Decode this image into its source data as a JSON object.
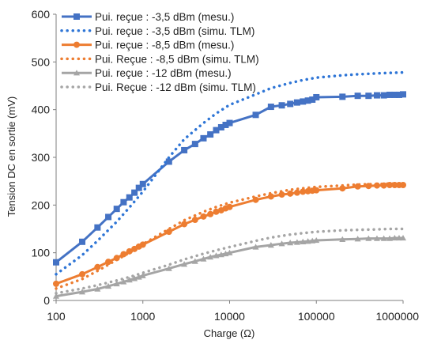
{
  "chart_data": {
    "type": "line",
    "xlabel": "Charge (Ω)",
    "ylabel": "Tension DC en sortie (mV)",
    "x_scale": "log",
    "xlim": [
      100,
      1000000
    ],
    "ylim": [
      0,
      600
    ],
    "x_ticks": [
      100,
      1000,
      10000,
      100000,
      1000000
    ],
    "x_tick_labels": [
      "100",
      "1000",
      "10000",
      "100000",
      "1000000"
    ],
    "y_ticks": [
      0,
      100,
      200,
      300,
      400,
      500,
      600
    ],
    "y_tick_labels": [
      "0",
      "100",
      "200",
      "300",
      "400",
      "500",
      "600"
    ],
    "grid": false,
    "legend_position": "top-left",
    "series": [
      {
        "name": "Pui. reçue : -3,5 dBm (mesu.)",
        "color": "#4472C4",
        "style": "solid",
        "marker": "square",
        "x": [
          100,
          200,
          300,
          400,
          500,
          600,
          700,
          800,
          900,
          1000,
          2000,
          3000,
          4000,
          5000,
          6000,
          7000,
          8000,
          9000,
          10000,
          20000,
          30000,
          40000,
          50000,
          60000,
          70000,
          80000,
          90000,
          100000,
          200000,
          300000,
          400000,
          500000,
          600000,
          700000,
          800000,
          900000,
          1000000
        ],
        "y": [
          80,
          123,
          153,
          175,
          192,
          206,
          216,
          226,
          236,
          244,
          291,
          315,
          328,
          340,
          348,
          357,
          363,
          368,
          372,
          389,
          406,
          409,
          412,
          415,
          417,
          419,
          421,
          426,
          427,
          429,
          429,
          430,
          430,
          431,
          431,
          431,
          432
        ]
      },
      {
        "name": "Pui. reçue : -3,5 dBm (simu. TLM)",
        "color": "#2E75D6",
        "style": "dotted",
        "marker": "none",
        "x": [
          100,
          200,
          300,
          500,
          700,
          1000,
          2000,
          3000,
          5000,
          7000,
          10000,
          20000,
          30000,
          50000,
          70000,
          100000,
          200000,
          300000,
          500000,
          700000,
          1000000
        ],
        "y": [
          55,
          95,
          125,
          165,
          195,
          228,
          300,
          338,
          372,
          392,
          410,
          432,
          445,
          456,
          462,
          467,
          472,
          474,
          476,
          477,
          478
        ]
      },
      {
        "name": "Pui. reçue : -8,5 dBm (mesu.)",
        "color": "#ED7D31",
        "style": "solid",
        "marker": "circle",
        "x": [
          100,
          200,
          300,
          400,
          500,
          600,
          700,
          800,
          900,
          1000,
          2000,
          3000,
          4000,
          5000,
          6000,
          7000,
          8000,
          9000,
          10000,
          20000,
          30000,
          40000,
          50000,
          60000,
          70000,
          80000,
          90000,
          100000,
          200000,
          300000,
          400000,
          500000,
          600000,
          700000,
          800000,
          900000,
          1000000
        ],
        "y": [
          35,
          55,
          70,
          81,
          89,
          97,
          103,
          108,
          113,
          117,
          144,
          160,
          169,
          176,
          181,
          186,
          189,
          193,
          196,
          211,
          218,
          222,
          224,
          226,
          228,
          229,
          230,
          231,
          235,
          239,
          240,
          241,
          241,
          242,
          242,
          242,
          242
        ]
      },
      {
        "name": "Pui. Reçue : -8,5 dBm (simu. TLM)",
        "color": "#ED7D31",
        "style": "dotted",
        "marker": "none",
        "x": [
          100,
          200,
          300,
          500,
          700,
          1000,
          2000,
          3000,
          5000,
          7000,
          10000,
          20000,
          30000,
          50000,
          70000,
          100000,
          200000,
          300000,
          500000,
          700000,
          1000000
        ],
        "y": [
          25,
          45,
          62,
          85,
          100,
          118,
          150,
          168,
          186,
          196,
          205,
          218,
          225,
          232,
          235,
          238,
          241,
          243,
          244,
          245,
          245
        ]
      },
      {
        "name": "Pui. reçue : -12 dBm (mesu.)",
        "color": "#A5A5A5",
        "style": "solid",
        "marker": "triangle",
        "x": [
          100,
          200,
          300,
          400,
          500,
          600,
          700,
          800,
          900,
          1000,
          2000,
          3000,
          4000,
          5000,
          6000,
          7000,
          8000,
          9000,
          10000,
          20000,
          30000,
          40000,
          50000,
          60000,
          70000,
          80000,
          90000,
          100000,
          200000,
          300000,
          400000,
          500000,
          600000,
          700000,
          800000,
          900000,
          1000000
        ],
        "y": [
          9,
          18,
          24,
          30,
          35,
          39,
          43,
          46,
          49,
          52,
          67,
          76,
          82,
          87,
          91,
          94,
          96,
          98,
          100,
          112,
          116,
          119,
          121,
          122,
          123,
          124,
          125,
          126,
          128,
          129,
          130,
          130,
          130,
          130,
          131,
          131,
          131
        ]
      },
      {
        "name": "Pui. Reçue : -12 dBm (simu. TLM)",
        "color": "#A5A5A5",
        "style": "dotted",
        "marker": "none",
        "x": [
          100,
          200,
          300,
          500,
          700,
          1000,
          2000,
          3000,
          5000,
          7000,
          10000,
          20000,
          30000,
          50000,
          70000,
          100000,
          200000,
          300000,
          500000,
          700000,
          1000000
        ],
        "y": [
          15,
          25,
          32,
          42,
          49,
          58,
          75,
          86,
          98,
          105,
          112,
          125,
          132,
          138,
          141,
          144,
          147,
          148,
          149,
          150,
          150
        ]
      }
    ]
  }
}
